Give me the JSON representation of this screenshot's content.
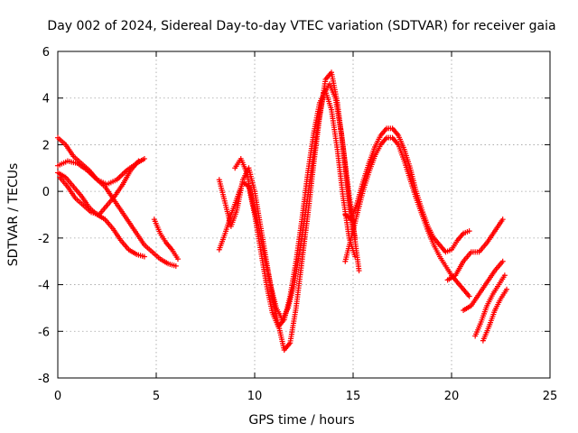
{
  "chart_data": {
    "type": "scatter",
    "title": "Day 002 of 2024, Sidereal Day-to-day VTEC variation (SDTVAR) for receiver gaia",
    "xlabel": "GPS time / hours",
    "ylabel": "SDTVAR / TECUs",
    "xlim": [
      0,
      25
    ],
    "ylim": [
      -8,
      6
    ],
    "xticks": [
      0,
      5,
      10,
      15,
      20,
      25
    ],
    "yticks": [
      -8,
      -6,
      -4,
      -2,
      0,
      2,
      4,
      6
    ],
    "grid": true,
    "marker": "plus",
    "color": "#ff0000",
    "series": [
      {
        "name": "arc1",
        "x": [
          0.0,
          0.4,
          0.8,
          1.2,
          1.6,
          2.0,
          2.4,
          2.8,
          3.2,
          3.6,
          4.0,
          4.4,
          4.8,
          5.2,
          5.6,
          6.0
        ],
        "y": [
          2.3,
          2.0,
          1.5,
          1.2,
          0.9,
          0.5,
          0.2,
          -0.3,
          -0.8,
          -1.3,
          -1.8,
          -2.3,
          -2.6,
          -2.9,
          -3.1,
          -3.2
        ]
      },
      {
        "name": "arc2",
        "x": [
          0.0,
          0.4,
          0.8,
          1.2,
          1.6,
          2.0,
          2.4,
          2.8,
          3.2,
          3.6,
          4.0,
          4.4
        ],
        "y": [
          0.8,
          0.6,
          0.2,
          -0.2,
          -0.7,
          -1.0,
          -1.2,
          -1.6,
          -2.1,
          -2.5,
          -2.7,
          -2.8
        ]
      },
      {
        "name": "arc3",
        "x": [
          0.0,
          0.5,
          1.0,
          1.5,
          2.0,
          2.5,
          3.0,
          3.5,
          4.0,
          4.4
        ],
        "y": [
          1.1,
          1.3,
          1.2,
          0.9,
          0.5,
          0.3,
          0.5,
          0.9,
          1.2,
          1.4
        ]
      },
      {
        "name": "arc4",
        "x": [
          0.1,
          0.5,
          0.9,
          1.3,
          1.7,
          2.1,
          2.5,
          2.9,
          3.3,
          3.7,
          4.1
        ],
        "y": [
          0.6,
          0.2,
          -0.3,
          -0.6,
          -0.9,
          -1.0,
          -0.6,
          -0.2,
          0.3,
          0.9,
          1.3
        ]
      },
      {
        "name": "arc5",
        "x": [
          4.9,
          5.2,
          5.5,
          5.8,
          6.1
        ],
        "y": [
          -1.2,
          -1.8,
          -2.2,
          -2.5,
          -2.9
        ]
      },
      {
        "name": "arc6",
        "x": [
          8.2,
          8.5,
          8.8,
          9.1,
          9.4,
          9.7,
          10.0,
          10.3,
          10.6,
          10.9,
          11.2,
          11.5,
          11.8,
          12.1,
          12.4,
          12.7,
          13.0,
          13.3,
          13.6,
          13.9,
          14.2,
          14.5,
          14.8,
          15.1
        ],
        "y": [
          -2.5,
          -1.8,
          -1.0,
          -0.3,
          0.4,
          0.2,
          -1.0,
          -2.5,
          -4.0,
          -5.2,
          -5.8,
          -5.5,
          -4.5,
          -3.0,
          -1.2,
          0.8,
          2.5,
          3.8,
          4.3,
          3.5,
          1.8,
          -0.3,
          -2.0,
          -2.8
        ]
      },
      {
        "name": "arc7",
        "x": [
          8.2,
          8.5,
          8.8,
          9.1,
          9.4,
          9.7,
          10.0,
          10.3,
          10.6,
          10.9,
          11.2,
          11.5,
          11.8,
          12.1,
          12.4,
          12.7,
          13.0,
          13.3,
          13.6,
          13.9,
          14.2,
          14.5,
          14.8,
          15.1
        ],
        "y": [
          0.5,
          -0.5,
          -1.5,
          -0.8,
          0.5,
          1.0,
          0.0,
          -1.5,
          -3.0,
          -4.5,
          -5.7,
          -6.8,
          -6.5,
          -5.0,
          -3.0,
          -1.0,
          1.2,
          3.2,
          4.8,
          5.1,
          3.8,
          1.8,
          -0.5,
          -2.0
        ]
      },
      {
        "name": "arc8",
        "x": [
          9.0,
          9.3,
          9.6,
          9.9,
          10.2,
          10.5,
          10.8,
          11.1,
          11.4,
          11.7,
          12.0,
          12.3,
          12.6,
          12.9,
          13.2,
          13.5,
          13.8,
          14.1,
          14.4,
          14.7,
          15.0,
          15.3
        ],
        "y": [
          1.0,
          1.4,
          0.8,
          -0.5,
          -1.5,
          -2.8,
          -4.0,
          -5.0,
          -5.5,
          -5.0,
          -4.0,
          -2.5,
          -0.8,
          1.0,
          2.8,
          4.2,
          4.6,
          4.0,
          2.5,
          0.5,
          -1.5,
          -3.4
        ]
      },
      {
        "name": "arc9",
        "x": [
          14.6,
          14.9,
          15.2,
          15.5,
          15.8,
          16.1,
          16.4,
          16.7,
          17.0,
          17.3,
          17.6,
          17.9,
          18.2,
          18.5,
          18.8,
          19.1,
          19.4,
          19.7,
          20.0,
          20.3,
          20.6,
          20.9
        ],
        "y": [
          -3.0,
          -2.0,
          -1.0,
          0.0,
          0.8,
          1.5,
          2.0,
          2.3,
          2.3,
          2.0,
          1.3,
          0.5,
          -0.3,
          -1.0,
          -1.7,
          -2.3,
          -2.8,
          -3.2,
          -3.6,
          -3.9,
          -4.2,
          -4.5
        ]
      },
      {
        "name": "arc10",
        "x": [
          14.6,
          14.9,
          15.2,
          15.5,
          15.8,
          16.1,
          16.4,
          16.7,
          17.0,
          17.3,
          17.6,
          17.9,
          18.2,
          18.5,
          18.8,
          19.1,
          19.4,
          19.7,
          20.0,
          20.3,
          20.6,
          20.9
        ],
        "y": [
          -1.0,
          -1.2,
          -0.5,
          0.4,
          1.2,
          1.9,
          2.4,
          2.7,
          2.7,
          2.4,
          1.8,
          1.0,
          0.0,
          -0.8,
          -1.5,
          -2.0,
          -2.3,
          -2.6,
          -2.5,
          -2.1,
          -1.8,
          -1.7
        ]
      },
      {
        "name": "arc11",
        "x": [
          19.8,
          20.2,
          20.6,
          21.0,
          21.4,
          21.8,
          22.2,
          22.6
        ],
        "y": [
          -3.8,
          -3.6,
          -3.0,
          -2.6,
          -2.6,
          -2.2,
          -1.7,
          -1.2
        ]
      },
      {
        "name": "arc12",
        "x": [
          20.6,
          21.0,
          21.4,
          21.8,
          22.2,
          22.6
        ],
        "y": [
          -5.1,
          -4.9,
          -4.4,
          -3.9,
          -3.4,
          -3.0
        ]
      },
      {
        "name": "arc13",
        "x": [
          21.2,
          21.5,
          21.8,
          22.1,
          22.4,
          22.7
        ],
        "y": [
          -6.2,
          -5.6,
          -4.9,
          -4.4,
          -4.0,
          -3.6
        ]
      },
      {
        "name": "arc14",
        "x": [
          21.6,
          21.9,
          22.2,
          22.5,
          22.8
        ],
        "y": [
          -6.4,
          -5.8,
          -5.1,
          -4.6,
          -4.2
        ]
      }
    ]
  }
}
